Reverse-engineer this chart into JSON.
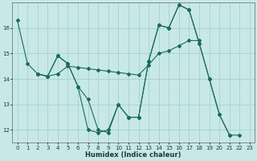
{
  "xlabel": "Humidex (Indice chaleur)",
  "bg_color": "#c8e8e8",
  "grid_color": "#a8d0d0",
  "line_color": "#1a6b5a",
  "xlim": [
    -0.5,
    23.5
  ],
  "ylim": [
    11.5,
    17.0
  ],
  "yticks": [
    12,
    13,
    14,
    15,
    16
  ],
  "xticks": [
    0,
    1,
    2,
    3,
    4,
    5,
    6,
    7,
    8,
    9,
    10,
    11,
    12,
    13,
    14,
    15,
    16,
    17,
    18,
    19,
    20,
    21,
    22,
    23
  ],
  "series1_x": [
    0,
    1,
    2,
    3,
    4,
    5,
    6,
    7,
    8,
    9,
    10,
    11,
    12,
    13,
    14,
    15,
    16,
    17,
    18,
    19,
    20,
    21
  ],
  "series1_y": [
    16.3,
    14.6,
    14.2,
    14.1,
    14.9,
    14.6,
    13.7,
    12.0,
    11.9,
    12.0,
    13.0,
    12.5,
    12.5,
    14.7,
    16.1,
    16.0,
    16.9,
    16.7,
    15.4,
    14.0,
    12.6,
    11.8
  ],
  "series2_x": [
    2,
    3,
    4,
    5,
    6,
    7,
    8,
    9,
    10,
    11,
    12,
    13,
    14,
    15,
    16,
    17,
    18
  ],
  "series2_y": [
    14.2,
    14.1,
    14.2,
    14.5,
    14.45,
    14.4,
    14.35,
    14.3,
    14.25,
    14.2,
    14.15,
    14.55,
    15.0,
    15.1,
    15.3,
    15.5,
    15.5
  ],
  "series3_x": [
    2,
    3,
    4,
    5,
    6,
    7,
    8,
    9,
    10,
    11,
    12,
    13,
    14,
    15,
    16,
    17,
    18,
    19,
    20,
    21,
    22
  ],
  "series3_y": [
    14.2,
    14.1,
    14.9,
    14.6,
    13.7,
    13.2,
    12.0,
    11.9,
    13.0,
    12.5,
    12.5,
    14.7,
    16.1,
    16.0,
    16.9,
    16.7,
    15.4,
    14.0,
    12.6,
    11.8,
    11.8
  ]
}
